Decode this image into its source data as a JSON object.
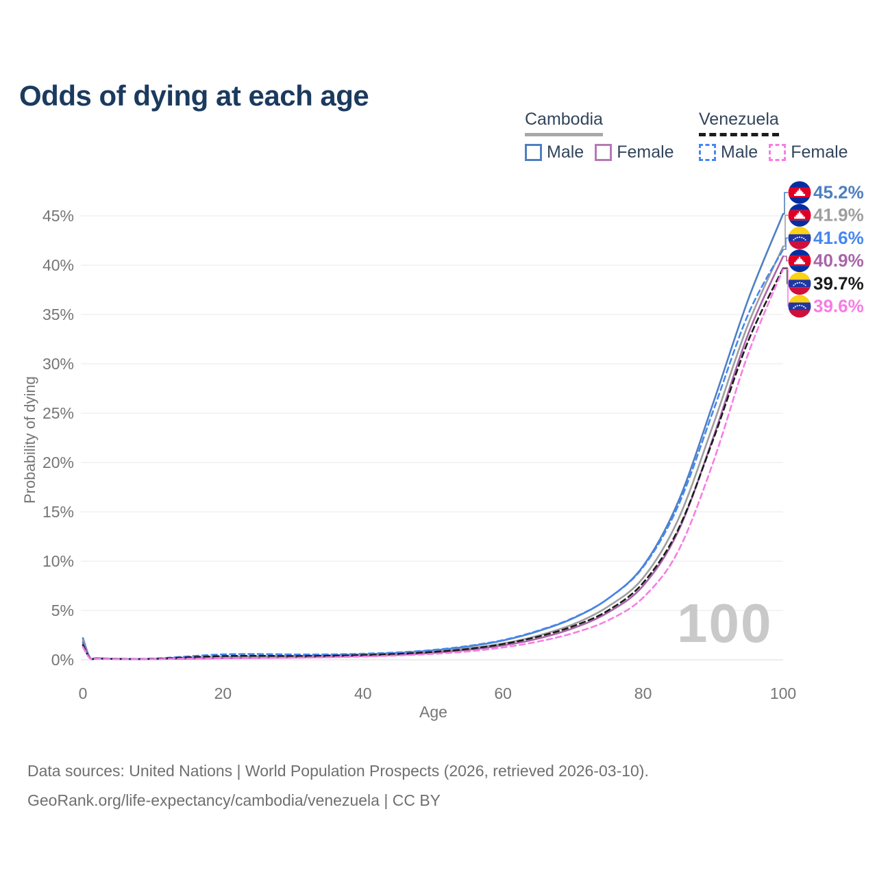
{
  "title": "Odds of dying at each age",
  "watermark": "100",
  "footer": {
    "line1": "Data sources: United Nations | World Population Prospects (2026, retrieved 2026-03-10).",
    "line2": "GeoRank.org/life-expectancy/cambodia/venezuela | CC BY"
  },
  "legend": {
    "groups": [
      {
        "name": "Cambodia",
        "underline_style": "solid",
        "underline_color": "#a8a8a8",
        "items": [
          {
            "label": "Male",
            "color": "#4e7fc1",
            "dash": "solid"
          },
          {
            "label": "Female",
            "color": "#b678b6",
            "dash": "solid"
          }
        ]
      },
      {
        "name": "Venezuela",
        "underline_style": "dashed",
        "underline_color": "#1c1c1c",
        "items": [
          {
            "label": "Male",
            "color": "#4687f0",
            "dash": "dashed"
          },
          {
            "label": "Female",
            "color": "#f87ce4",
            "dash": "dashed"
          }
        ]
      }
    ]
  },
  "chart_data": {
    "type": "line",
    "title": "Odds of dying at each age",
    "xlabel": "Age",
    "ylabel": "Probability of dying",
    "xlim": [
      0,
      100
    ],
    "ylim_percent": [
      0,
      47
    ],
    "grid": "horizontal only",
    "x_ticks": [
      0,
      20,
      40,
      60,
      80,
      100
    ],
    "y_ticks_percent": [
      0,
      5,
      10,
      15,
      20,
      25,
      30,
      35,
      40,
      45
    ],
    "y_tick_labels": [
      "0%",
      "5%",
      "10%",
      "15%",
      "20%",
      "25%",
      "30%",
      "35%",
      "40%",
      "45%"
    ],
    "hover_age_indicator": "100",
    "x": [
      0,
      1,
      2,
      5,
      10,
      15,
      20,
      25,
      30,
      35,
      40,
      45,
      50,
      55,
      60,
      65,
      70,
      75,
      80,
      85,
      90,
      95,
      100
    ],
    "series": [
      {
        "name": "Cambodia Male",
        "country": "Cambodia",
        "sex": "Male",
        "color": "#4e7fc1",
        "dash": "solid",
        "flag": "KH",
        "end_label": "45.2%",
        "values": [
          2.2,
          0.25,
          0.18,
          0.1,
          0.09,
          0.18,
          0.3,
          0.35,
          0.38,
          0.45,
          0.55,
          0.7,
          0.95,
          1.35,
          1.95,
          2.9,
          4.2,
          6.2,
          9.5,
          16.0,
          26.0,
          36.5,
          45.2
        ]
      },
      {
        "name": "Cambodia Both sexes",
        "country": "Cambodia",
        "sex": "Both",
        "color": "#9e9e9e",
        "dash": "solid",
        "flag": "KH",
        "end_label": "41.9%",
        "values": [
          2.0,
          0.22,
          0.16,
          0.09,
          0.08,
          0.15,
          0.24,
          0.28,
          0.31,
          0.37,
          0.46,
          0.6,
          0.82,
          1.15,
          1.65,
          2.45,
          3.6,
          5.4,
          8.3,
          14.2,
          23.8,
          34.0,
          41.9
        ]
      },
      {
        "name": "Venezuela Male",
        "country": "Venezuela",
        "sex": "Male",
        "color": "#4687f0",
        "dash": "dashed",
        "flag": "VE",
        "end_label": "41.6%",
        "values": [
          1.7,
          0.18,
          0.14,
          0.09,
          0.12,
          0.35,
          0.55,
          0.58,
          0.55,
          0.55,
          0.62,
          0.75,
          1.0,
          1.4,
          2.0,
          2.95,
          4.25,
          6.2,
          9.4,
          15.6,
          25.2,
          35.0,
          41.6
        ]
      },
      {
        "name": "Cambodia Female",
        "country": "Cambodia",
        "sex": "Female",
        "color": "#a865a8",
        "dash": "solid",
        "flag": "KH",
        "end_label": "40.9%",
        "values": [
          1.8,
          0.2,
          0.15,
          0.08,
          0.07,
          0.11,
          0.16,
          0.19,
          0.23,
          0.29,
          0.38,
          0.5,
          0.7,
          1.0,
          1.45,
          2.15,
          3.2,
          4.8,
          7.5,
          13.0,
          22.5,
          33.0,
          40.9
        ]
      },
      {
        "name": "Venezuela Both sexes",
        "country": "Venezuela",
        "sex": "Both",
        "color": "#1c1c1c",
        "dash": "dashed",
        "flag": "VE",
        "end_label": "39.7%",
        "values": [
          1.5,
          0.16,
          0.12,
          0.08,
          0.1,
          0.25,
          0.38,
          0.4,
          0.38,
          0.4,
          0.48,
          0.6,
          0.8,
          1.1,
          1.6,
          2.35,
          3.4,
          5.0,
          7.8,
          13.2,
          22.3,
          32.3,
          39.7
        ]
      },
      {
        "name": "Venezuela Female",
        "country": "Venezuela",
        "sex": "Female",
        "color": "#f87ce4",
        "dash": "dashed",
        "flag": "VE",
        "end_label": "39.6%",
        "values": [
          1.3,
          0.14,
          0.11,
          0.07,
          0.07,
          0.12,
          0.16,
          0.18,
          0.21,
          0.26,
          0.33,
          0.44,
          0.6,
          0.85,
          1.25,
          1.85,
          2.7,
          4.0,
          6.3,
          11.0,
          20.0,
          31.0,
          39.6
        ]
      }
    ],
    "flag_colors": {
      "KH": {
        "blue": "#032ea1",
        "red": "#e00025",
        "temple": "#ffffff"
      },
      "VE": {
        "yellow": "#fcd116",
        "blue": "#2036a3",
        "red": "#d0103a",
        "stars": "#ffffff"
      }
    }
  }
}
